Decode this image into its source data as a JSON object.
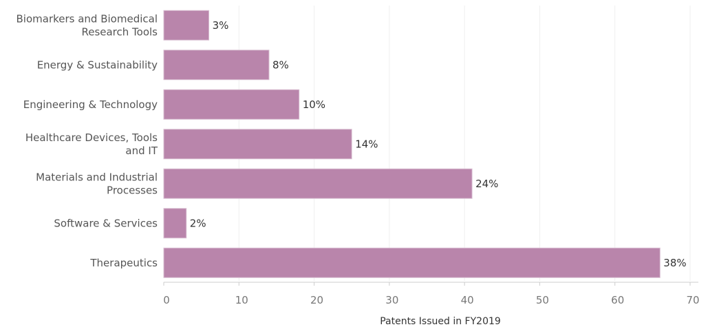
{
  "chart_data": {
    "type": "bar",
    "orientation": "horizontal",
    "categories": [
      [
        "Biomarkers and Biomedical",
        "Research Tools"
      ],
      [
        "Energy & Sustainability"
      ],
      [
        "Engineering & Technology"
      ],
      [
        "Healthcare Devices, Tools",
        "and IT"
      ],
      [
        "Materials and Industrial",
        "Processes"
      ],
      [
        "Software & Services"
      ],
      [
        "Therapeutics"
      ]
    ],
    "values": [
      6,
      14,
      18,
      25,
      41,
      3,
      66
    ],
    "data_labels": [
      "3%",
      "8%",
      "10%",
      "14%",
      "24%",
      "2%",
      "38%"
    ],
    "xlabel": "Patents Issued in FY2019",
    "ylabel": "",
    "xlim": [
      0,
      70
    ],
    "xticks": [
      0,
      10,
      20,
      30,
      40,
      50,
      60,
      70
    ],
    "grid": "vertical",
    "bar_color": "#b985ab",
    "bar_border_color": "#d9bfd2"
  }
}
